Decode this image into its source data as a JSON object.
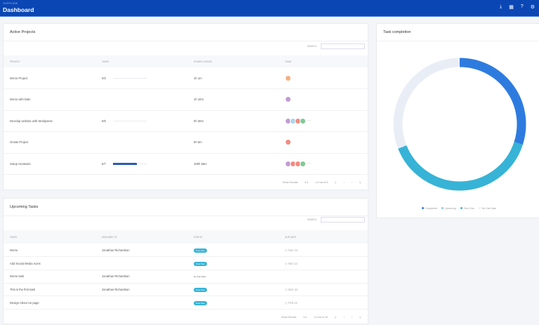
{
  "header": {
    "breadcrumb": "OVERVIEW",
    "title": "Dashboard",
    "icons": [
      "download-icon",
      "calendar-icon",
      "help-icon",
      "settings-icon"
    ]
  },
  "projects": {
    "title": "Active Projects",
    "search_label": "SEARCH",
    "search_placeholder": "",
    "columns": [
      "Project",
      "Tasks",
      "Hours Logged",
      "Team"
    ],
    "rows": [
      {
        "name": "Demo Project",
        "tasks": "0/2",
        "progress": 0,
        "hours": "1h 1m",
        "team": [
          "#f4b183"
        ],
        "more": false
      },
      {
        "name": "Demo with Dale",
        "tasks": "",
        "progress": null,
        "hours": "1h 10m",
        "team": [
          "#c39bd3"
        ],
        "more": false
      },
      {
        "name": "Develop website with Wordpress",
        "tasks": "0/6",
        "progress": 0,
        "hours": "0h 30m",
        "team": [
          "#c39bd3",
          "#a9d6e5",
          "#f28b82",
          "#81c995"
        ],
        "more": true
      },
      {
        "name": "Onsite Project",
        "tasks": "",
        "progress": null,
        "hours": "0h 5m",
        "team": [
          "#f28b82"
        ],
        "more": false
      },
      {
        "name": "Setup Hootsuite",
        "tasks": "5/7",
        "progress": 0.71,
        "hours": "100h 55m",
        "team": [
          "#c39bd3",
          "#f28b82",
          "#f28b82",
          "#81c995"
        ],
        "more": true
      }
    ],
    "pager": {
      "show_label": "Show Results",
      "per_page": "5",
      "range": "1-5 out of 5"
    }
  },
  "tasks": {
    "title": "Upcoming Tasks",
    "search_label": "SEARCH",
    "search_placeholder": "",
    "columns": [
      "Tasks",
      "Assigned To",
      "Status",
      "Due Date"
    ],
    "rows": [
      {
        "name": "Demo",
        "assigned": "Jonathan Richardson",
        "status": "Over Due",
        "due": "Nov 14"
      },
      {
        "name": "Add Social Media Icons",
        "assigned": "",
        "status": "Over Due",
        "due": "Mar 12"
      },
      {
        "name": "Demo task",
        "assigned": "Jonathan Richardson",
        "status": "No Due Date",
        "due": ""
      },
      {
        "name": "This is the first task",
        "assigned": "Jonathan Richardson",
        "status": "Over Due",
        "due": "Mar 16"
      },
      {
        "name": "Design About Us page",
        "assigned": "",
        "status": "Over Due",
        "due": "Feb 22"
      }
    ],
    "pager": {
      "show_label": "Show Results",
      "per_page": "5",
      "range": "1-5 out of 10"
    }
  },
  "completion": {
    "title": "Task completion"
  },
  "chart_data": {
    "type": "pie",
    "donut": true,
    "title": "Task completion",
    "categories": [
      "Completed",
      "Upcoming",
      "Over Due",
      "No Due Date"
    ],
    "values": [
      30,
      0,
      39,
      31
    ],
    "colors": [
      "#2e7be0",
      "#8fc3ea",
      "#36b3d6",
      "#e9eef6"
    ],
    "legend": "bottom"
  }
}
